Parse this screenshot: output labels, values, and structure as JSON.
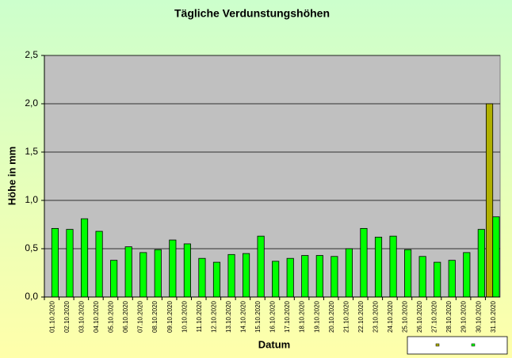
{
  "chart_data": {
    "type": "bar",
    "title": "Tägliche Verdunstungshöhen",
    "x_label": "Datum",
    "y_label": "Höhe in mm",
    "categories": [
      "01.10.2020",
      "02.10.2020",
      "03.10.2020",
      "04.10.2020",
      "05.10.2020",
      "06.10.2020",
      "07.10.2020",
      "08.10.2020",
      "09.10.2020",
      "10.10.2020",
      "11.10.2020",
      "12.10.2020",
      "13.10.2020",
      "14.10.2020",
      "15.10.2020",
      "16.10.2020",
      "17.10.2020",
      "18.10.2020",
      "19.10.2020",
      "20.10.2020",
      "21.10.2020",
      "22.10.2020",
      "23.10.2020",
      "24.10.2020",
      "25.10.2020",
      "26.10.2020",
      "27.10.2020",
      "28.10.2020",
      "29.10.2020",
      "30.10.2020",
      "31.10.2020"
    ],
    "series": [
      {
        "color": "#b0b000",
        "values": [
          null,
          null,
          null,
          null,
          null,
          null,
          null,
          null,
          null,
          null,
          null,
          null,
          null,
          null,
          null,
          null,
          null,
          null,
          null,
          null,
          null,
          null,
          null,
          null,
          null,
          null,
          null,
          null,
          null,
          null,
          2.0
        ]
      },
      {
        "color": "#00ff00",
        "values": [
          0.71,
          0.7,
          0.81,
          0.68,
          0.38,
          0.52,
          0.46,
          0.49,
          0.59,
          0.55,
          0.4,
          0.36,
          0.44,
          0.45,
          0.63,
          0.37,
          0.4,
          0.43,
          0.43,
          0.42,
          0.5,
          0.71,
          0.62,
          0.63,
          0.49,
          0.42,
          0.36,
          0.38,
          0.46,
          0.7,
          0.83
        ]
      }
    ],
    "ylim": [
      0,
      2.5
    ],
    "yticks": [
      {
        "value": 0,
        "label": "0,0"
      },
      {
        "value": 0.5,
        "label": "0,5"
      },
      {
        "value": 1,
        "label": "1,0"
      },
      {
        "value": 1.5,
        "label": "1,5"
      },
      {
        "value": 2,
        "label": "2,0"
      },
      {
        "value": 2.5,
        "label": "2,5"
      }
    ],
    "grid": true,
    "plot_color": "#c0c0c0"
  }
}
